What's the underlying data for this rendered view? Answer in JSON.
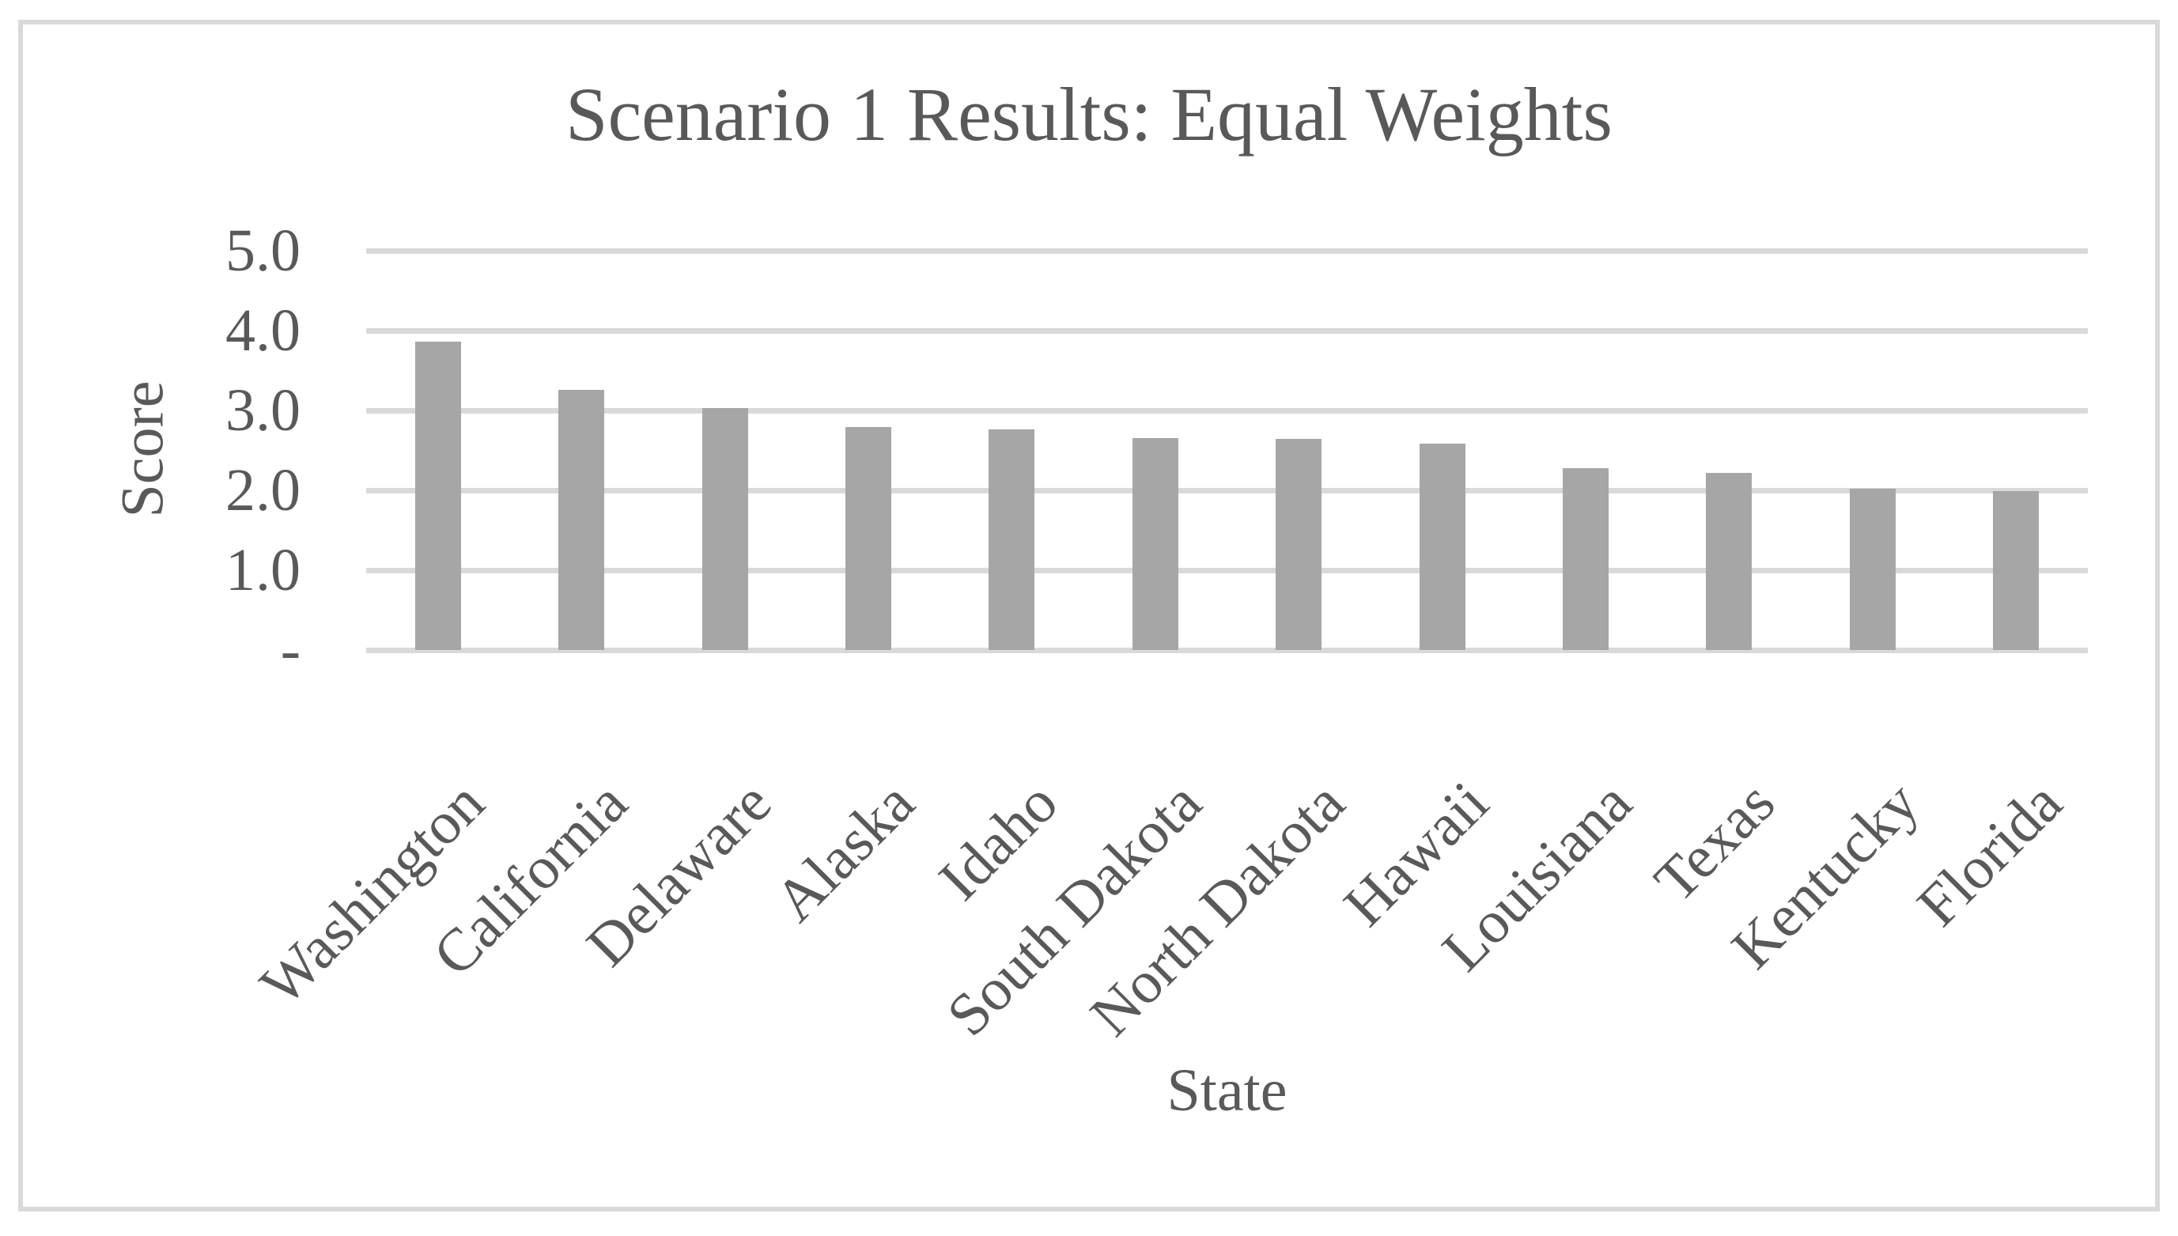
{
  "chart_data": {
    "type": "bar",
    "title": "Scenario 1 Results: Equal Weights",
    "xlabel": "State",
    "ylabel": "Score",
    "categories": [
      "Washington",
      "California",
      "Delaware",
      "Alaska",
      "Idaho",
      "South Dakota",
      "North Dakota",
      "Hawaii",
      "Louisiana",
      "Texas",
      "Kentucky",
      "Florida"
    ],
    "values": [
      3.86,
      3.26,
      3.03,
      2.79,
      2.76,
      2.65,
      2.64,
      2.58,
      2.28,
      2.22,
      2.02,
      1.99
    ],
    "ylim": [
      0,
      5
    ],
    "ytick_values": [
      5,
      4,
      3,
      2,
      1,
      0
    ],
    "ytick_labels": [
      "5.0",
      "4.0",
      "3.0",
      "2.0",
      "1.0",
      "-"
    ],
    "grid": "horizontal",
    "legend": "none",
    "colors": {
      "bar_fill": "#a6a6a6",
      "gridline": "#d9d9d9",
      "frame_border": "#d9d9d9",
      "text": "#595959",
      "background": "#ffffff"
    }
  }
}
